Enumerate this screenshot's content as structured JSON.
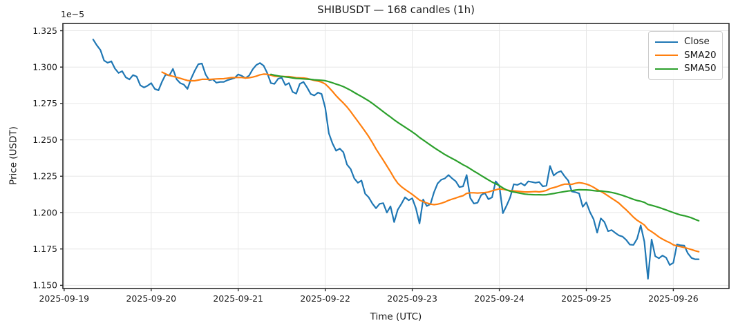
{
  "chart_data": {
    "type": "line",
    "title": "SHIBUSDT — 168 candles (1h)",
    "xlabel": "Time (UTC)",
    "ylabel": "Price (USDT)",
    "y_offset_label": "1e−5",
    "candle_count": 168,
    "interval": "1h",
    "grid": true,
    "legend_position": "upper right",
    "x_tick_labels": [
      "2025-09-19",
      "2025-09-20",
      "2025-09-21",
      "2025-09-22",
      "2025-09-23",
      "2025-09-24",
      "2025-09-25",
      "2025-09-26"
    ],
    "x_tick_hours": [
      -8,
      16,
      40,
      64,
      88,
      112,
      136,
      160
    ],
    "y_tick_values": [
      1.15,
      1.175,
      1.2,
      1.225,
      1.25,
      1.275,
      1.3,
      1.325
    ],
    "axis": {
      "ylim": [
        1.1478,
        1.33
      ],
      "xlim_hours": [
        -8.35,
        175.35
      ],
      "hours_per_candle": 1
    },
    "colors": {
      "close": "#1f77b4",
      "sma20": "#ff7f0e",
      "sma50": "#2ca02c"
    },
    "series": [
      {
        "name": "Close",
        "color": "#1f77b4",
        "kind": "raw"
      },
      {
        "name": "SMA20",
        "color": "#ff7f0e",
        "kind": "sma",
        "window": 20
      },
      {
        "name": "SMA50",
        "color": "#2ca02c",
        "kind": "sma",
        "window": 50
      }
    ],
    "close_values_1e5": [
      1.319,
      1.315,
      1.3118,
      1.3045,
      1.303,
      1.304,
      1.299,
      1.296,
      1.2972,
      1.293,
      1.2915,
      1.2945,
      1.2935,
      1.2875,
      1.286,
      1.2872,
      1.289,
      1.285,
      1.284,
      1.29,
      1.295,
      1.2942,
      1.2988,
      1.2917,
      1.289,
      1.288,
      1.285,
      1.292,
      1.2975,
      1.302,
      1.3025,
      1.295,
      1.291,
      1.2915,
      1.2893,
      1.2898,
      1.2898,
      1.291,
      1.2917,
      1.2925,
      1.295,
      1.294,
      1.2924,
      1.2942,
      1.2985,
      1.3015,
      1.3028,
      1.301,
      1.296,
      1.289,
      1.2885,
      1.292,
      1.2927,
      1.2877,
      1.289,
      1.283,
      1.2818,
      1.2885,
      1.2898,
      1.286,
      1.2815,
      1.2805,
      1.2825,
      1.2815,
      1.272,
      1.2545,
      1.2475,
      1.2425,
      1.244,
      1.2415,
      1.233,
      1.23,
      1.2235,
      1.2205,
      1.222,
      1.213,
      1.2105,
      1.2062,
      1.203,
      1.206,
      1.2065,
      1.2,
      1.2043,
      1.1935,
      1.202,
      1.206,
      1.2105,
      1.2085,
      1.2098,
      1.203,
      1.1925,
      1.209,
      1.2045,
      1.2058,
      1.214,
      1.22,
      1.2226,
      1.2235,
      1.2258,
      1.2235,
      1.2215,
      1.2175,
      1.218,
      1.2258,
      1.21,
      1.2062,
      1.2068,
      1.212,
      1.2135,
      1.2092,
      1.2105,
      1.2215,
      1.2185,
      1.1996,
      1.2048,
      1.2105,
      1.2195,
      1.219,
      1.2202,
      1.2186,
      1.2215,
      1.221,
      1.2205,
      1.221,
      1.218,
      1.2185,
      1.232,
      1.2255,
      1.2275,
      1.2285,
      1.225,
      1.222,
      1.2145,
      1.214,
      1.2132,
      1.204,
      1.207,
      1.2003,
      1.1955,
      1.1862,
      1.196,
      1.1935,
      1.1872,
      1.188,
      1.186,
      1.1843,
      1.1835,
      1.1812,
      1.178,
      1.1778,
      1.182,
      1.1912,
      1.18,
      1.1545,
      1.1815,
      1.17,
      1.1686,
      1.1705,
      1.169,
      1.164,
      1.1655,
      1.1781,
      1.1775,
      1.1773,
      1.172,
      1.1688,
      1.1679,
      1.1679
    ]
  },
  "style": {
    "grid_color": "#e6e6e6",
    "spine_color": "#2a2a2a",
    "tick_color": "#2a2a2a",
    "text_color": "#1a1a1a",
    "background": "#ffffff"
  }
}
